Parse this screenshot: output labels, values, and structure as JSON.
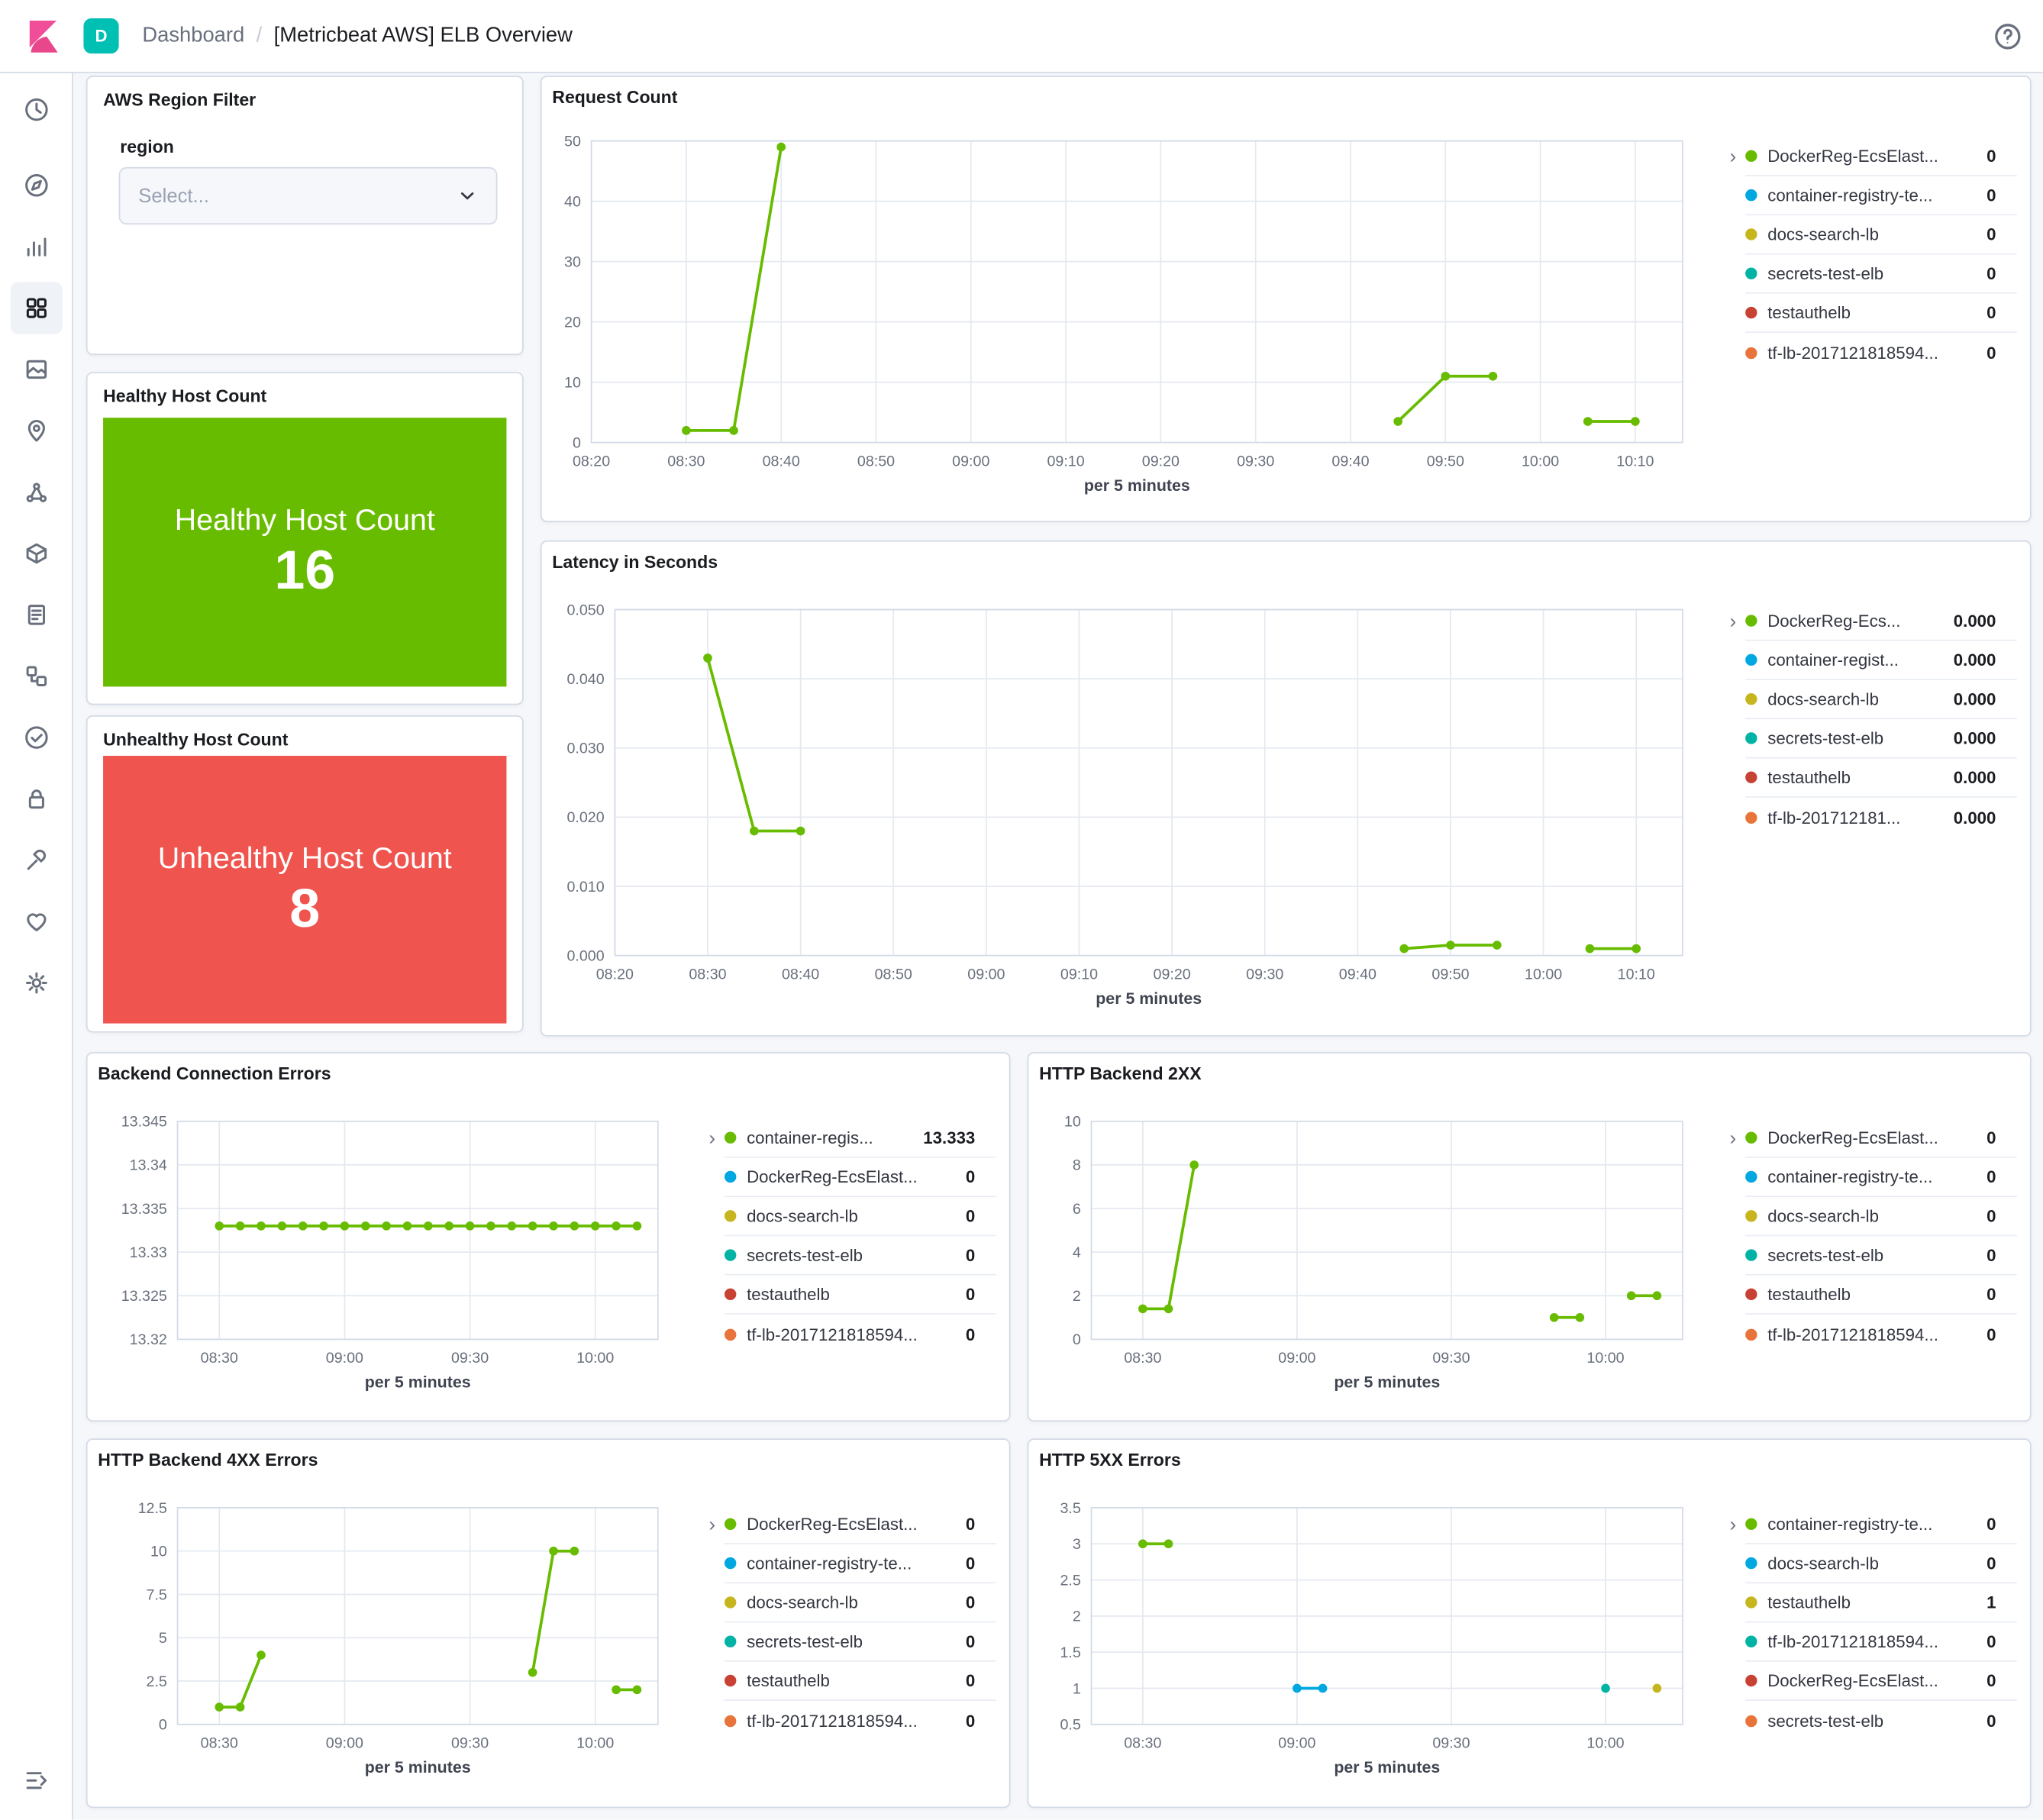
{
  "header": {
    "space_badge": "D",
    "breadcrumb": "Dashboard",
    "separator": "/",
    "title": "[Metricbeat AWS] ELB Overview"
  },
  "sidebar": {
    "items": [
      "recently-viewed",
      "discover",
      "visualize",
      "dashboard",
      "canvas",
      "maps",
      "machine-learning",
      "infrastructure",
      "logs",
      "apm",
      "uptime",
      "security",
      "dev-tools",
      "stack-monitoring",
      "management"
    ],
    "selected": "dashboard"
  },
  "filters": {
    "title": "AWS Region Filter",
    "field_label": "region",
    "select_placeholder": "Select..."
  },
  "metrics": {
    "healthy": {
      "panel_title": "Healthy Host Count",
      "label": "Healthy Host Count",
      "value": "16",
      "color": "#68BC00"
    },
    "unhealthy": {
      "panel_title": "Unhealthy Host Count",
      "label": "Unhealthy Host Count",
      "value": "8",
      "color": "#F0544F"
    }
  },
  "chart_data": [
    {
      "id": "request_count",
      "type": "line",
      "title": "Request Count",
      "xlabel": "per 5 minutes",
      "x_domain": [
        "08:20",
        "10:15"
      ],
      "x_ticks": [
        "08:20",
        "08:30",
        "08:40",
        "08:50",
        "09:00",
        "09:10",
        "09:20",
        "09:30",
        "09:40",
        "09:50",
        "10:00",
        "10:10"
      ],
      "y_domain": [
        0,
        50
      ],
      "y_ticks": [
        [
          0,
          "0"
        ],
        [
          10,
          "10"
        ],
        [
          20,
          "20"
        ],
        [
          30,
          "30"
        ],
        [
          40,
          "40"
        ],
        [
          50,
          "50"
        ]
      ],
      "grid": true,
      "legend_position": "right",
      "series": [
        {
          "name": "DockerReg-EcsElast...",
          "color": "#68BC00",
          "segments": [
            [
              [
                "08:30",
                2
              ],
              [
                "08:35",
                2
              ],
              [
                "08:40",
                49
              ]
            ],
            [
              [
                "09:45",
                3.5
              ],
              [
                "09:50",
                11
              ],
              [
                "09:55",
                11
              ]
            ],
            [
              [
                "10:05",
                3.5
              ],
              [
                "10:10",
                3.5
              ]
            ]
          ]
        }
      ],
      "legend": [
        {
          "label": "DockerReg-EcsElast...",
          "color": "#68BC00",
          "value": "0"
        },
        {
          "label": "container-registry-te...",
          "color": "#00A7E1",
          "value": "0"
        },
        {
          "label": "docs-search-lb",
          "color": "#C6B51D",
          "value": "0"
        },
        {
          "label": "secrets-test-elb",
          "color": "#00B3A4",
          "value": "0"
        },
        {
          "label": "testauthelb",
          "color": "#C84234",
          "value": "0"
        },
        {
          "label": "tf-lb-2017121818594...",
          "color": "#E8743B",
          "value": "0"
        }
      ]
    },
    {
      "id": "latency",
      "type": "line",
      "title": "Latency in Seconds",
      "xlabel": "per 5 minutes",
      "x_domain": [
        "08:20",
        "10:15"
      ],
      "x_ticks": [
        "08:20",
        "08:30",
        "08:40",
        "08:50",
        "09:00",
        "09:10",
        "09:20",
        "09:30",
        "09:40",
        "09:50",
        "10:00",
        "10:10"
      ],
      "y_domain": [
        0,
        0.05
      ],
      "y_ticks": [
        [
          0,
          "0.000"
        ],
        [
          0.01,
          "0.010"
        ],
        [
          0.02,
          "0.020"
        ],
        [
          0.03,
          "0.030"
        ],
        [
          0.04,
          "0.040"
        ],
        [
          0.05,
          "0.050"
        ]
      ],
      "grid": true,
      "legend_position": "right",
      "series": [
        {
          "name": "DockerReg-Ecs...",
          "color": "#68BC00",
          "segments": [
            [
              [
                "08:30",
                0.043
              ],
              [
                "08:35",
                0.018
              ],
              [
                "08:40",
                0.018
              ]
            ],
            [
              [
                "09:45",
                0.001
              ],
              [
                "09:50",
                0.0015
              ],
              [
                "09:55",
                0.0015
              ]
            ],
            [
              [
                "10:05",
                0.001
              ],
              [
                "10:10",
                0.001
              ]
            ]
          ]
        }
      ],
      "legend": [
        {
          "label": "DockerReg-Ecs...",
          "color": "#68BC00",
          "value": "0.000"
        },
        {
          "label": "container-regist...",
          "color": "#00A7E1",
          "value": "0.000"
        },
        {
          "label": "docs-search-lb",
          "color": "#C6B51D",
          "value": "0.000"
        },
        {
          "label": "secrets-test-elb",
          "color": "#00B3A4",
          "value": "0.000"
        },
        {
          "label": "testauthelb",
          "color": "#C84234",
          "value": "0.000"
        },
        {
          "label": "tf-lb-201712181...",
          "color": "#E8743B",
          "value": "0.000"
        }
      ]
    },
    {
      "id": "backend_errors",
      "type": "line",
      "title": "Backend Connection Errors",
      "xlabel": "per 5 minutes",
      "x_domain": [
        "08:20",
        "10:15"
      ],
      "x_ticks": [
        "08:30",
        "09:00",
        "09:30",
        "10:00"
      ],
      "y_domain": [
        13.32,
        13.345
      ],
      "y_ticks": [
        [
          13.32,
          "13.32"
        ],
        [
          13.325,
          "13.325"
        ],
        [
          13.33,
          "13.33"
        ],
        [
          13.335,
          "13.335"
        ],
        [
          13.34,
          "13.34"
        ],
        [
          13.345,
          "13.345"
        ]
      ],
      "grid": true,
      "legend_position": "right",
      "series": [
        {
          "name": "container-regis...",
          "color": "#68BC00",
          "segments": [
            [
              [
                "08:30",
                13.333
              ],
              [
                "08:35",
                13.333
              ],
              [
                "08:40",
                13.333
              ],
              [
                "08:45",
                13.333
              ],
              [
                "08:50",
                13.333
              ],
              [
                "08:55",
                13.333
              ],
              [
                "09:00",
                13.333
              ],
              [
                "09:05",
                13.333
              ],
              [
                "09:10",
                13.333
              ],
              [
                "09:15",
                13.333
              ],
              [
                "09:20",
                13.333
              ],
              [
                "09:25",
                13.333
              ],
              [
                "09:30",
                13.333
              ],
              [
                "09:35",
                13.333
              ],
              [
                "09:40",
                13.333
              ],
              [
                "09:45",
                13.333
              ],
              [
                "09:50",
                13.333
              ],
              [
                "09:55",
                13.333
              ],
              [
                "10:00",
                13.333
              ],
              [
                "10:05",
                13.333
              ],
              [
                "10:10",
                13.333
              ]
            ]
          ]
        }
      ],
      "legend": [
        {
          "label": "container-regis...",
          "color": "#68BC00",
          "value": "13.333"
        },
        {
          "label": "DockerReg-EcsElast...",
          "color": "#00A7E1",
          "value": "0"
        },
        {
          "label": "docs-search-lb",
          "color": "#C6B51D",
          "value": "0"
        },
        {
          "label": "secrets-test-elb",
          "color": "#00B3A4",
          "value": "0"
        },
        {
          "label": "testauthelb",
          "color": "#C84234",
          "value": "0"
        },
        {
          "label": "tf-lb-2017121818594...",
          "color": "#E8743B",
          "value": "0"
        }
      ]
    },
    {
      "id": "http_2xx",
      "type": "line",
      "title": "HTTP Backend 2XX",
      "xlabel": "per 5 minutes",
      "x_domain": [
        "08:20",
        "10:15"
      ],
      "x_ticks": [
        "08:30",
        "09:00",
        "09:30",
        "10:00"
      ],
      "y_domain": [
        0,
        10
      ],
      "y_ticks": [
        [
          0,
          "0"
        ],
        [
          2,
          "2"
        ],
        [
          4,
          "4"
        ],
        [
          6,
          "6"
        ],
        [
          8,
          "8"
        ],
        [
          10,
          "10"
        ]
      ],
      "grid": true,
      "legend_position": "right",
      "series": [
        {
          "name": "DockerReg-EcsElast...",
          "color": "#68BC00",
          "segments": [
            [
              [
                "08:30",
                1.4
              ],
              [
                "08:35",
                1.4
              ],
              [
                "08:40",
                8
              ]
            ],
            [
              [
                "09:50",
                1
              ],
              [
                "09:55",
                1
              ]
            ],
            [
              [
                "10:05",
                2
              ],
              [
                "10:10",
                2
              ]
            ]
          ]
        }
      ],
      "legend": [
        {
          "label": "DockerReg-EcsElast...",
          "color": "#68BC00",
          "value": "0"
        },
        {
          "label": "container-registry-te...",
          "color": "#00A7E1",
          "value": "0"
        },
        {
          "label": "docs-search-lb",
          "color": "#C6B51D",
          "value": "0"
        },
        {
          "label": "secrets-test-elb",
          "color": "#00B3A4",
          "value": "0"
        },
        {
          "label": "testauthelb",
          "color": "#C84234",
          "value": "0"
        },
        {
          "label": "tf-lb-2017121818594...",
          "color": "#E8743B",
          "value": "0"
        }
      ]
    },
    {
      "id": "http_4xx",
      "type": "line",
      "title": "HTTP Backend 4XX Errors",
      "xlabel": "per 5 minutes",
      "x_domain": [
        "08:20",
        "10:15"
      ],
      "x_ticks": [
        "08:30",
        "09:00",
        "09:30",
        "10:00"
      ],
      "y_domain": [
        0,
        12.5
      ],
      "y_ticks": [
        [
          0,
          "0"
        ],
        [
          2.5,
          "2.5"
        ],
        [
          5,
          "5"
        ],
        [
          7.5,
          "7.5"
        ],
        [
          10,
          "10"
        ],
        [
          12.5,
          "12.5"
        ]
      ],
      "grid": true,
      "legend_position": "right",
      "series": [
        {
          "name": "DockerReg-EcsElast...",
          "color": "#68BC00",
          "segments": [
            [
              [
                "08:30",
                1
              ],
              [
                "08:35",
                1
              ],
              [
                "08:40",
                4
              ]
            ],
            [
              [
                "09:45",
                3
              ],
              [
                "09:50",
                10
              ],
              [
                "09:55",
                10
              ]
            ],
            [
              [
                "10:05",
                2
              ],
              [
                "10:10",
                2
              ]
            ]
          ]
        }
      ],
      "legend": [
        {
          "label": "DockerReg-EcsElast...",
          "color": "#68BC00",
          "value": "0"
        },
        {
          "label": "container-registry-te...",
          "color": "#00A7E1",
          "value": "0"
        },
        {
          "label": "docs-search-lb",
          "color": "#C6B51D",
          "value": "0"
        },
        {
          "label": "secrets-test-elb",
          "color": "#00B3A4",
          "value": "0"
        },
        {
          "label": "testauthelb",
          "color": "#C84234",
          "value": "0"
        },
        {
          "label": "tf-lb-2017121818594...",
          "color": "#E8743B",
          "value": "0"
        }
      ]
    },
    {
      "id": "http_5xx",
      "type": "line",
      "title": "HTTP 5XX Errors",
      "xlabel": "per 5 minutes",
      "x_domain": [
        "08:20",
        "10:15"
      ],
      "x_ticks": [
        "08:30",
        "09:00",
        "09:30",
        "10:00"
      ],
      "y_domain": [
        0.5,
        3.5
      ],
      "y_ticks": [
        [
          0.5,
          "0.5"
        ],
        [
          1,
          "1"
        ],
        [
          1.5,
          "1.5"
        ],
        [
          2,
          "2"
        ],
        [
          2.5,
          "2.5"
        ],
        [
          3,
          "3"
        ],
        [
          3.5,
          "3.5"
        ]
      ],
      "grid": true,
      "legend_position": "right",
      "series": [
        {
          "name": "container-registry-te...",
          "color": "#68BC00",
          "segments": [
            [
              [
                "08:30",
                3
              ],
              [
                "08:35",
                3
              ]
            ]
          ]
        },
        {
          "name": "docs-search-lb",
          "color": "#00A7E1",
          "segments": [
            [
              [
                "09:00",
                1
              ],
              [
                "09:05",
                1
              ]
            ]
          ]
        },
        {
          "name": "tf-lb-2017121818594...",
          "color": "#00B3A4",
          "segments": [
            [
              [
                "10:00",
                1
              ]
            ]
          ]
        },
        {
          "name": "testauthelb",
          "color": "#C6B51D",
          "segments": [
            [
              [
                "10:10",
                1
              ]
            ]
          ]
        }
      ],
      "legend": [
        {
          "label": "container-registry-te...",
          "color": "#68BC00",
          "value": "0"
        },
        {
          "label": "docs-search-lb",
          "color": "#00A7E1",
          "value": "0"
        },
        {
          "label": "testauthelb",
          "color": "#C6B51D",
          "value": "1"
        },
        {
          "label": "tf-lb-2017121818594...",
          "color": "#00B3A4",
          "value": "0"
        },
        {
          "label": "DockerReg-EcsElast...",
          "color": "#C84234",
          "value": "0"
        },
        {
          "label": "secrets-test-elb",
          "color": "#E8743B",
          "value": "0"
        }
      ]
    }
  ]
}
